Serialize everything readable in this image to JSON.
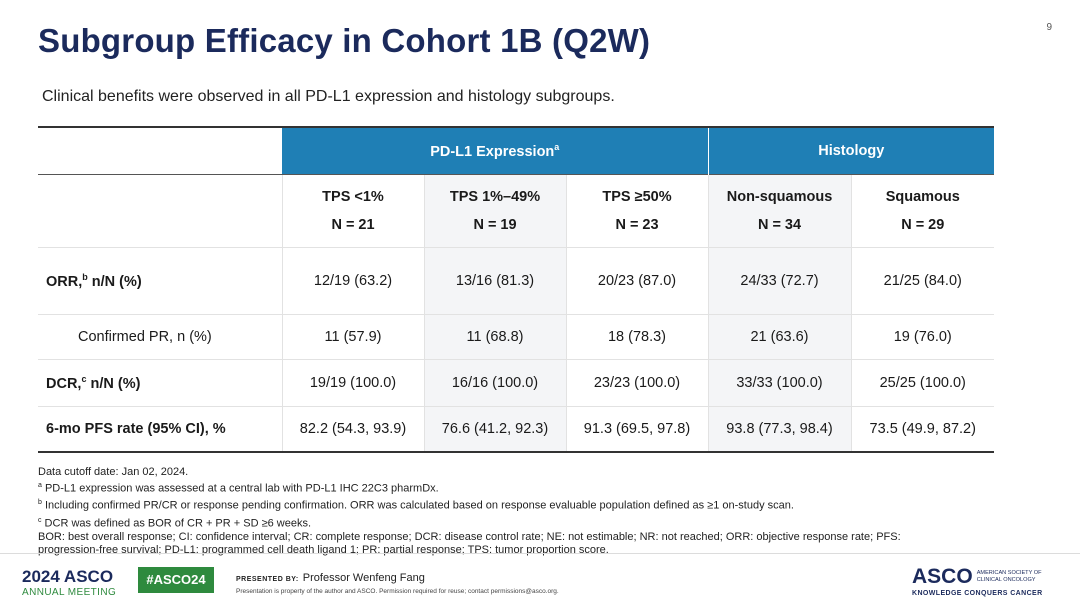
{
  "page_number": "9",
  "title": "Subgroup Efficacy in Cohort 1B (Q2W)",
  "subtitle": "Clinical benefits were observed in all PD-L1 expression and histology subgroups.",
  "table": {
    "group_headers": [
      {
        "label": "PD-L1 Expression",
        "sup": "a"
      },
      {
        "label": "Histology",
        "sup": ""
      }
    ],
    "columns": [
      {
        "name": "TPS <1%",
        "n": "N = 21"
      },
      {
        "name": "TPS 1%–49%",
        "n": "N = 19"
      },
      {
        "name": "TPS ≥50%",
        "n": "N = 23"
      },
      {
        "name": "Non-squamous",
        "n": "N = 34"
      },
      {
        "name": "Squamous",
        "n": "N = 29"
      }
    ],
    "rows": [
      {
        "label_pre": "ORR,",
        "sup": "b",
        "label_post": " n/N (%)",
        "values": [
          "12/19 (63.2)",
          "13/16 (81.3)",
          "20/23 (87.0)",
          "24/33 (72.7)",
          "21/25 (84.0)"
        ]
      },
      {
        "label_pre": "Confirmed PR, n (%)",
        "sup": "",
        "label_post": "",
        "values": [
          "11 (57.9)",
          "11 (68.8)",
          "18 (78.3)",
          "21 (63.6)",
          "19 (76.0)"
        ]
      },
      {
        "label_pre": "DCR,",
        "sup": "c",
        "label_post": " n/N (%)",
        "values": [
          "19/19 (100.0)",
          "16/16 (100.0)",
          "23/23 (100.0)",
          "33/33 (100.0)",
          "25/25 (100.0)"
        ]
      },
      {
        "label_pre": "6-mo PFS rate (95% CI), %",
        "sup": "",
        "label_post": "",
        "values": [
          "82.2 (54.3, 93.9)",
          "76.6 (41.2, 92.3)",
          "91.3 (69.5, 97.8)",
          "93.8 (77.3, 98.4)",
          "73.5 (49.9, 87.2)"
        ]
      }
    ]
  },
  "footnotes": {
    "cutoff": "Data cutoff date: Jan 02, 2024.",
    "a": {
      "sup": "a",
      "text": " PD-L1 expression was assessed at a central lab with PD-L1 IHC 22C3 pharmDx."
    },
    "b": {
      "sup": "b",
      "text": " Including confirmed PR/CR or response pending confirmation. ORR was calculated based on response evaluable population defined as ≥1 on-study scan."
    },
    "c": {
      "sup": "c",
      "text": " DCR was defined as BOR of CR + PR + SD ≥6 weeks."
    },
    "abbrev_1": "BOR: best overall response; CI: confidence interval; CR: complete response; DCR: disease control rate; NE: not estimable; NR: not reached; ORR: objective response rate; PFS:",
    "abbrev_2": "progression-free survival; PD-L1: programmed cell death ligand 1; PR: partial response; TPS: tumor proportion score."
  },
  "footer": {
    "meeting_year": "2024",
    "meeting_brand": "ASCO",
    "meeting_sub": "ANNUAL MEETING",
    "hashtag": "#ASCO24",
    "presented_by": "PRESENTED BY:",
    "presenter": "Professor Wenfeng Fang",
    "reuse": "Presentation is property of the author and ASCO. Permission required for reuse; contact permissions@asco.org.",
    "logo": "ASCO",
    "society_1": "AMERICAN SOCIETY OF",
    "society_2": "CLINICAL ONCOLOGY",
    "tagline": "KNOWLEDGE CONQUERS CANCER"
  },
  "colors": {
    "header_band": "#1f7fb5",
    "title": "#1b2a5c",
    "asco_green": "#2e8a3e"
  }
}
